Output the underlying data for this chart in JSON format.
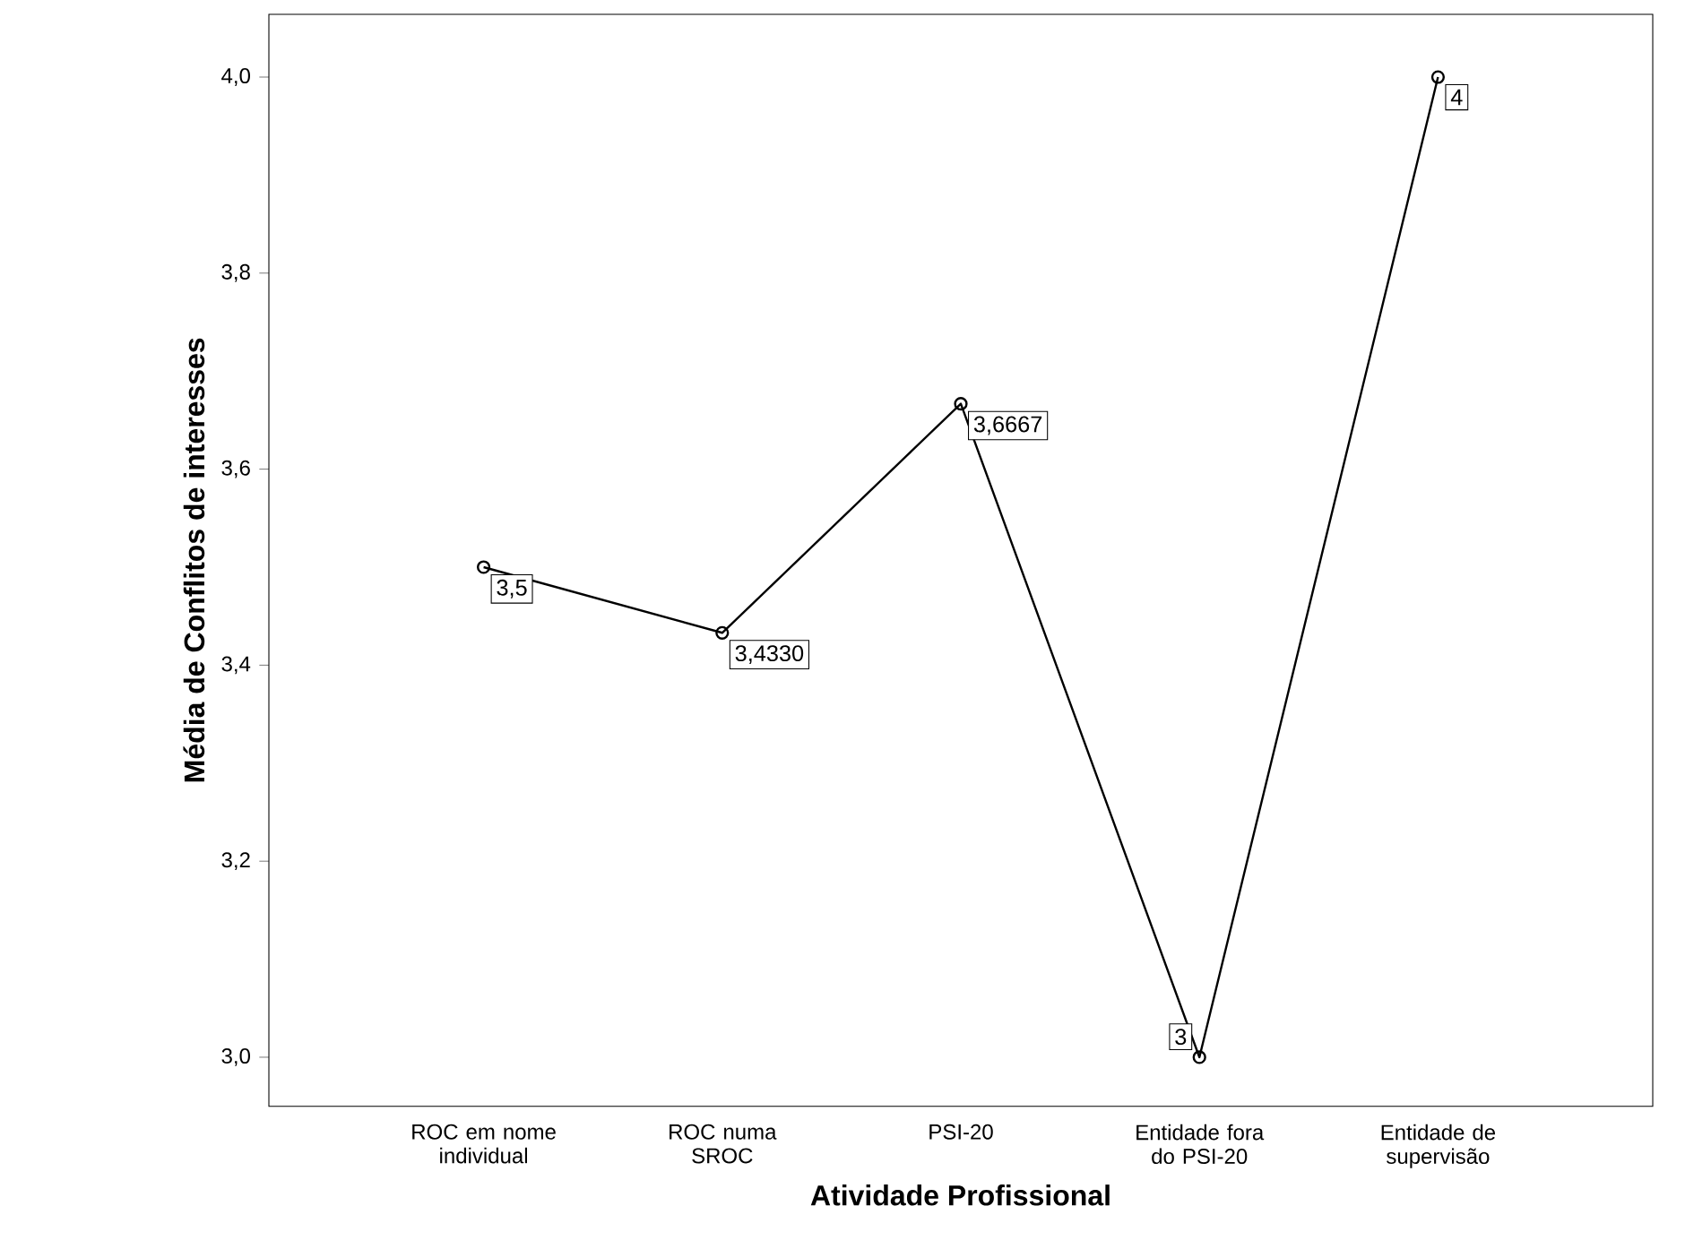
{
  "chart_data": {
    "type": "line",
    "xlabel": "Atividade Profissional",
    "ylabel": "Média de Conflitos de interesses",
    "categories": [
      "ROC em nome individual",
      "ROC numa SROC",
      "PSI-20",
      "Entidade fora do PSI-20",
      "Entidade de supervisão"
    ],
    "values": [
      3.5,
      3.433,
      3.6667,
      3,
      4
    ],
    "value_labels": [
      "3,5",
      "3,4330",
      "3,6667",
      "3",
      "4"
    ],
    "color": "#000000",
    "marker": "circle",
    "line_style": "solid",
    "grid": false,
    "ylim": [
      2.95,
      4.064
    ],
    "yticks": [
      {
        "value": 3.0,
        "label": "3,0"
      },
      {
        "value": 3.2,
        "label": "3,2"
      },
      {
        "value": 3.4,
        "label": "3,4"
      },
      {
        "value": 3.6,
        "label": "3,6"
      },
      {
        "value": 3.8,
        "label": "3,8"
      },
      {
        "value": 4.0,
        "label": "4,0"
      }
    ]
  }
}
